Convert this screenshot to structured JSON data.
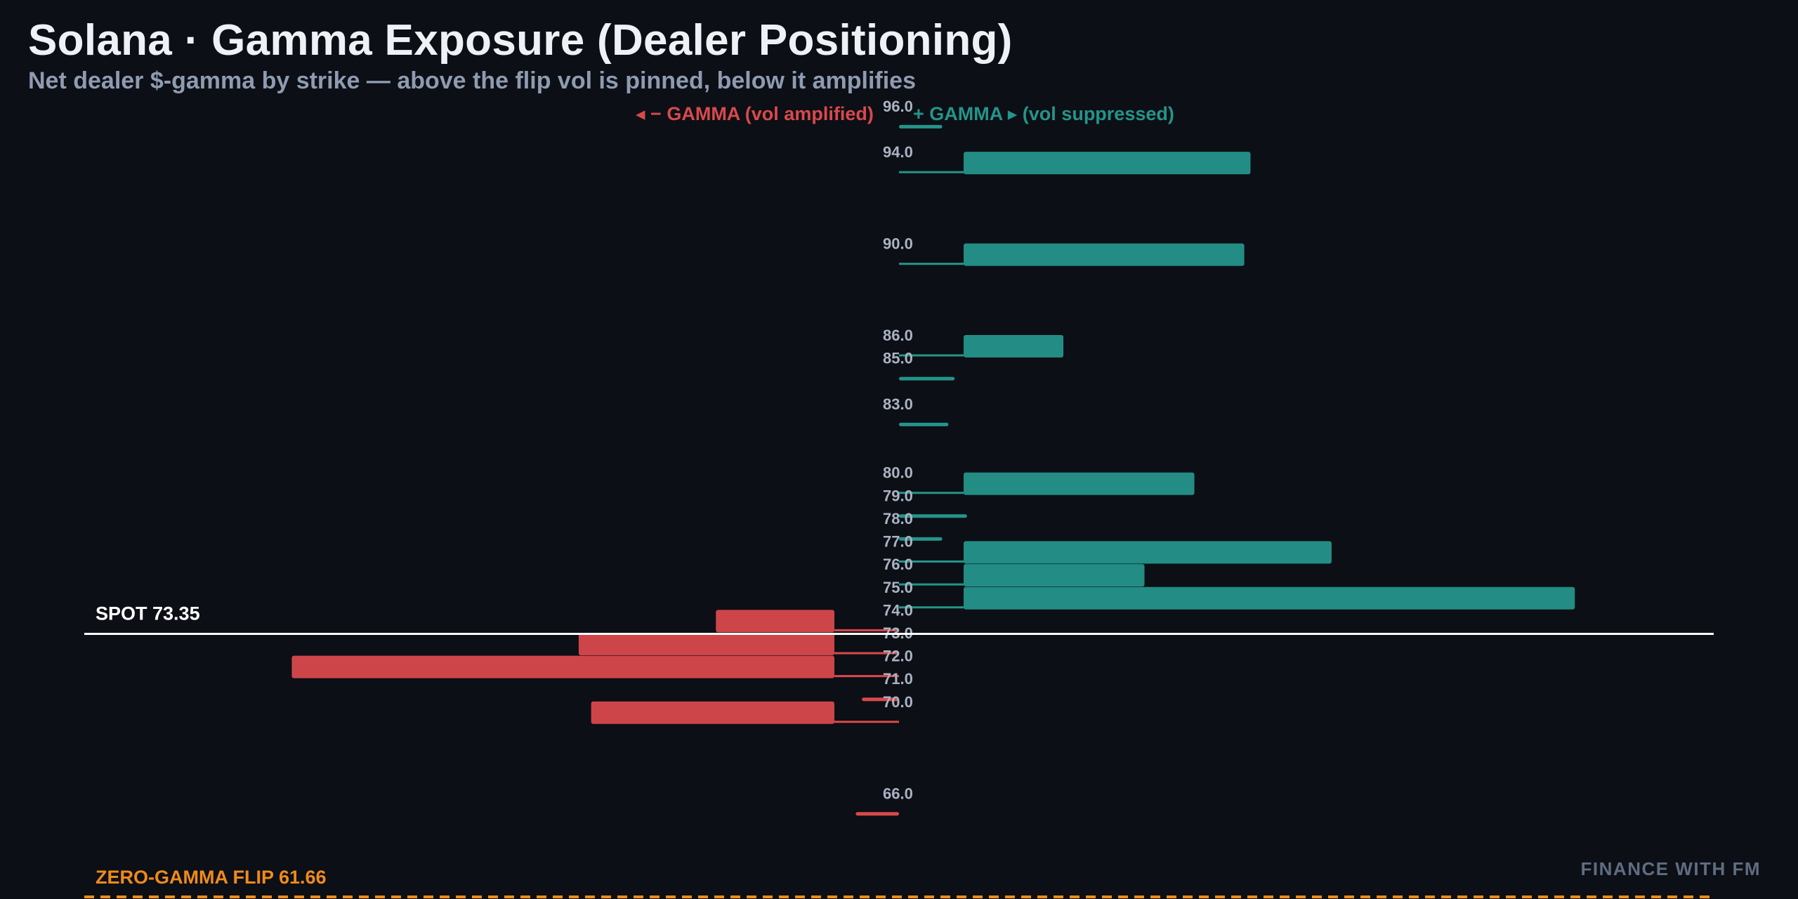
{
  "header": {
    "title": "Solana · Gamma Exposure (Dealer Positioning)",
    "subtitle": "Net dealer $-gamma by strike — above the flip vol is pinned, below it amplifies"
  },
  "legend": {
    "negative": "◂ − GAMMA (vol amplified)",
    "positive": "+ GAMMA ▸ (vol suppressed)"
  },
  "watermark": "FINANCE WITH FM",
  "colors": {
    "positive": "#25948a",
    "negative": "#d9494c",
    "spot": "#ffffff",
    "flip": "#f08a1c",
    "label": "#aab3c2"
  },
  "chart_data": {
    "type": "bar",
    "orientation": "horizontal",
    "strike_tick_labels": [
      "96.0",
      "94.0",
      "90.0",
      "86.0",
      "85.0",
      "83.0",
      "80.0",
      "79.0",
      "78.0",
      "77.0",
      "76.0",
      "75.0",
      "74.0",
      "73.0",
      "72.0",
      "71.0",
      "70.0",
      "66.0"
    ],
    "strikes": [
      96,
      94,
      90,
      86,
      85,
      83,
      80,
      79,
      78,
      77,
      76,
      75,
      74,
      73,
      72,
      71,
      70,
      66
    ],
    "gamma": [
      0.7,
      4.6,
      4.5,
      1.6,
      0.9,
      0.8,
      3.7,
      1.1,
      0.7,
      5.9,
      2.9,
      9.8,
      -1.9,
      -4.1,
      -8.7,
      -0.6,
      -3.9,
      -0.7
    ],
    "xlim": [
      -10,
      10
    ],
    "ylim": [
      61.5,
      97.5
    ],
    "markers": {
      "spot": {
        "value": 73.35,
        "label": "SPOT 73.35"
      },
      "flip": {
        "value": 61.66,
        "label": "ZERO-GAMMA FLIP 61.66"
      }
    }
  }
}
